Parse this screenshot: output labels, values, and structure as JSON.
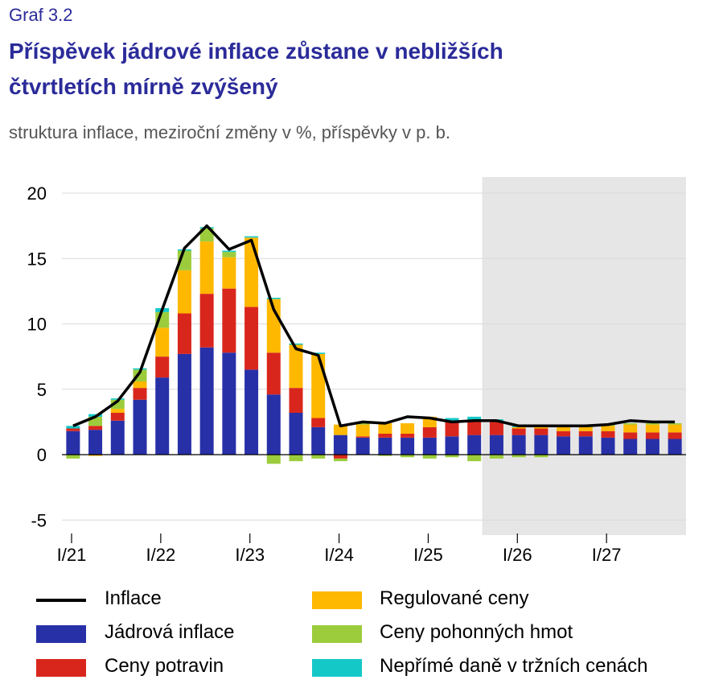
{
  "header": {
    "graf_label": "Graf 3.2",
    "title_line1": "Příspěvek jádrové inflace zůstane v nebližších",
    "title_line2": "čtvrtletích mírně zvýšený",
    "subtitle": "struktura inflace, meziroční změny v %, příspěvky v p. b."
  },
  "chart_data": {
    "type": "bar",
    "stacked": true,
    "title": "Příspěvek jádrové inflace zůstane v nebližších čtvrtletích mírně zvýšený",
    "subtitle": "struktura inflace, meziroční změny v %, příspěvky v p. b.",
    "ylim": [
      -6,
      20
    ],
    "yticks": [
      -5,
      0,
      5,
      10,
      15,
      20
    ],
    "ytick_labels": [
      "-5",
      "0",
      "5",
      "10",
      "15",
      "20"
    ],
    "xtick_labels": [
      "I/21",
      "I/22",
      "I/23",
      "I/24",
      "I/25",
      "I/26",
      "I/27"
    ],
    "xtick_index": [
      0,
      4,
      8,
      12,
      16,
      20,
      24
    ],
    "forecast_start_index": 19,
    "grid": true,
    "legend_position": "bottom",
    "categories": [
      "I/21",
      "II/21",
      "III/21",
      "IV/21",
      "I/22",
      "II/22",
      "III/22",
      "IV/22",
      "I/23",
      "II/23",
      "III/23",
      "IV/23",
      "I/24",
      "II/24",
      "III/24",
      "IV/24",
      "I/25",
      "II/25",
      "III/25",
      "IV/25",
      "I/26",
      "II/26",
      "III/26",
      "IV/26",
      "I/27",
      "II/27",
      "III/27",
      "IV/27"
    ],
    "series": [
      {
        "name": "Jádrová inflace",
        "color": "#2830a8",
        "values": [
          1.8,
          1.9,
          2.6,
          4.2,
          5.9,
          7.7,
          8.2,
          7.8,
          6.5,
          4.6,
          3.2,
          2.1,
          1.5,
          1.3,
          1.3,
          1.3,
          1.3,
          1.4,
          1.5,
          1.5,
          1.5,
          1.5,
          1.4,
          1.4,
          1.3,
          1.2,
          1.2,
          1.2
        ]
      },
      {
        "name": "Ceny potravin",
        "color": "#d9261c",
        "values": [
          0.2,
          0.3,
          0.6,
          0.9,
          1.6,
          3.1,
          4.1,
          4.9,
          4.8,
          3.2,
          1.9,
          0.7,
          -0.3,
          0.1,
          0.3,
          0.3,
          0.8,
          1.1,
          1.0,
          1.0,
          0.5,
          0.5,
          0.4,
          0.4,
          0.5,
          0.5,
          0.5,
          0.5
        ]
      },
      {
        "name": "Regulované ceny",
        "color": "#ffb800",
        "values": [
          0.0,
          -0.1,
          0.3,
          0.5,
          2.2,
          3.3,
          4.0,
          2.4,
          5.3,
          4.1,
          3.3,
          4.9,
          0.8,
          0.9,
          0.8,
          0.8,
          0.8,
          0.1,
          0.1,
          0.1,
          0.1,
          0.1,
          0.3,
          0.3,
          0.4,
          0.6,
          0.6,
          0.6
        ]
      },
      {
        "name": "Ceny pohonných hmot",
        "color": "#9ccc3c",
        "values": [
          -0.3,
          0.7,
          0.7,
          0.9,
          1.2,
          1.5,
          1.0,
          0.4,
          0.0,
          -0.7,
          -0.5,
          -0.3,
          -0.2,
          0.1,
          -0.1,
          -0.2,
          -0.3,
          -0.2,
          -0.5,
          -0.3,
          -0.2,
          -0.2,
          0.1,
          0.1,
          0.1,
          0.1,
          0.1,
          0.1
        ]
      },
      {
        "name": "Nepřímé daně v tržních cenách",
        "color": "#15c8c8",
        "values": [
          0.2,
          0.2,
          0.1,
          0.1,
          0.3,
          0.1,
          0.1,
          0.1,
          0.1,
          0.1,
          0.1,
          0.1,
          0.0,
          0.0,
          0.0,
          0.0,
          0.0,
          0.2,
          0.3,
          0.1,
          0.1,
          0.1,
          0.0,
          0.0,
          0.0,
          0.0,
          0.0,
          0.0
        ]
      }
    ],
    "line": {
      "name": "Inflace",
      "color": "#000000",
      "values": [
        2.2,
        2.9,
        4.1,
        6.3,
        11.1,
        15.8,
        17.5,
        15.7,
        16.4,
        11.1,
        8.1,
        7.6,
        2.2,
        2.5,
        2.4,
        2.9,
        2.8,
        2.5,
        2.6,
        2.6,
        2.2,
        2.2,
        2.2,
        2.2,
        2.3,
        2.6,
        2.5,
        2.5
      ]
    }
  },
  "legend": {
    "items": [
      {
        "label": "Inflace",
        "kind": "line",
        "color": "#000000"
      },
      {
        "label": "Jádrová inflace",
        "kind": "box",
        "color": "#2830a8"
      },
      {
        "label": "Ceny potravin",
        "kind": "box",
        "color": "#d9261c"
      },
      {
        "label": "Regulované ceny",
        "kind": "box",
        "color": "#ffb800"
      },
      {
        "label": "Ceny pohonných hmot",
        "kind": "box",
        "color": "#9ccc3c"
      },
      {
        "label": "Nepřímé daně v tržních cenách",
        "kind": "box",
        "color": "#15c8c8"
      }
    ]
  }
}
